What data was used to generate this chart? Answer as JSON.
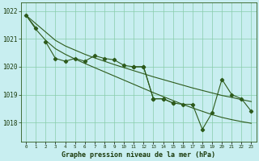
{
  "title": "Graphe pression niveau de la mer (hPa)",
  "bg_color": "#c8eef0",
  "grid_color": "#88ccaa",
  "line_color": "#2d5a1b",
  "x_ticks": [
    0,
    1,
    2,
    3,
    4,
    5,
    6,
    7,
    8,
    9,
    10,
    11,
    12,
    13,
    14,
    15,
    16,
    17,
    18,
    19,
    20,
    21,
    22,
    23
  ],
  "ylim": [
    1017.3,
    1022.3
  ],
  "yticks": [
    1018,
    1019,
    1020,
    1021,
    1022
  ],
  "line1_x": [
    0,
    1
  ],
  "line1_y": [
    1021.85,
    1021.4
  ],
  "line2_x": [
    2,
    3,
    4,
    5,
    6,
    7,
    8,
    9,
    10,
    11,
    12,
    13,
    14,
    15
  ],
  "line2_y": [
    1020.9,
    1020.3,
    1020.2,
    1020.3,
    1020.2,
    1020.4,
    1020.3,
    1020.25,
    1020.05,
    1020.0,
    1020.0,
    1018.85,
    1018.85,
    1018.7
  ],
  "line3_x": [
    0,
    1,
    2,
    3,
    4,
    5,
    6,
    7,
    8,
    9,
    10,
    11,
    12,
    13,
    14,
    15,
    16,
    17,
    18,
    19,
    20,
    21,
    22,
    23
  ],
  "line3_y": [
    1021.85,
    1021.35,
    1020.95,
    1020.65,
    1020.45,
    1020.28,
    1020.12,
    1019.97,
    1019.82,
    1019.67,
    1019.52,
    1019.37,
    1019.22,
    1019.07,
    1018.93,
    1018.79,
    1018.65,
    1018.52,
    1018.4,
    1018.28,
    1018.18,
    1018.1,
    1018.03,
    1017.97
  ],
  "line4_x": [
    0,
    1,
    2,
    3,
    4,
    5,
    6,
    7,
    8,
    9,
    10,
    11,
    12,
    13,
    14,
    15,
    16,
    17,
    18,
    19,
    20,
    21,
    22,
    23
  ],
  "line4_y": [
    1021.85,
    1021.55,
    1021.25,
    1020.95,
    1020.75,
    1020.6,
    1020.45,
    1020.32,
    1020.2,
    1020.08,
    1019.97,
    1019.86,
    1019.75,
    1019.64,
    1019.54,
    1019.44,
    1019.34,
    1019.24,
    1019.15,
    1019.06,
    1018.97,
    1018.9,
    1018.82,
    1018.75
  ],
  "line5_x": [
    11,
    12,
    13,
    14,
    15,
    16,
    17,
    18,
    19,
    20,
    21,
    22,
    23
  ],
  "line5_y": [
    1020.0,
    1020.0,
    1018.85,
    1018.85,
    1018.7,
    1018.65,
    1018.65,
    1017.75,
    1018.35,
    1019.55,
    1019.0,
    1018.85,
    1018.4
  ]
}
